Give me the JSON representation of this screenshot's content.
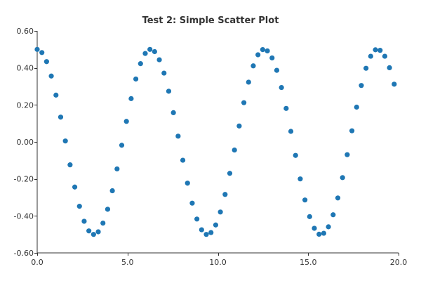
{
  "chart_data": {
    "type": "scatter",
    "title": "Test 2: Simple Scatter Plot",
    "xlabel": "",
    "ylabel": "",
    "xlim": [
      0,
      20
    ],
    "ylim": [
      -0.6,
      0.6
    ],
    "x_ticks": [
      "0.0",
      "5.0",
      "10.0",
      "15.0",
      "20.0"
    ],
    "x_tick_values": [
      0,
      5,
      10,
      15,
      20
    ],
    "y_ticks": [
      "0.60",
      "0.40",
      "0.20",
      "0.00",
      "-0.20",
      "-0.40",
      "-0.60"
    ],
    "y_tick_values": [
      0.6,
      0.4,
      0.2,
      0.0,
      -0.2,
      -0.4,
      -0.6
    ],
    "grid": false,
    "legend": "none",
    "colors": {
      "marker": "#1f77b4"
    },
    "series": [
      {
        "x": [
          0.0,
          0.26,
          0.52,
          0.78,
          1.04,
          1.3,
          1.56,
          1.82,
          2.08,
          2.34,
          2.6,
          2.86,
          3.12,
          3.38,
          3.64,
          3.9,
          4.16,
          4.42,
          4.68,
          4.94,
          5.2,
          5.46,
          5.72,
          5.98,
          6.24,
          6.5,
          6.76,
          7.02,
          7.28,
          7.54,
          7.8,
          8.06,
          8.32,
          8.58,
          8.84,
          9.1,
          9.36,
          9.62,
          9.88,
          10.14,
          10.4,
          10.66,
          10.92,
          11.18,
          11.44,
          11.7,
          11.96,
          12.22,
          12.48,
          12.74,
          13.0,
          13.26,
          13.52,
          13.78,
          14.04,
          14.3,
          14.56,
          14.82,
          15.08,
          15.34,
          15.6,
          15.86,
          16.12,
          16.38,
          16.64,
          16.9,
          17.16,
          17.42,
          17.68,
          17.94,
          18.2,
          18.46,
          18.72,
          18.98,
          19.24,
          19.5,
          19.76
        ],
        "y": [
          0.5,
          0.483,
          0.434,
          0.356,
          0.253,
          0.134,
          0.005,
          -0.124,
          -0.244,
          -0.348,
          -0.429,
          -0.481,
          -0.5,
          -0.486,
          -0.439,
          -0.364,
          -0.264,
          -0.146,
          -0.018,
          0.111,
          0.234,
          0.34,
          0.423,
          0.478,
          0.5,
          0.488,
          0.444,
          0.372,
          0.274,
          0.158,
          0.031,
          -0.099,
          -0.223,
          -0.331,
          -0.417,
          -0.475,
          -0.5,
          -0.49,
          -0.449,
          -0.379,
          -0.284,
          -0.17,
          -0.044,
          0.086,
          0.212,
          0.323,
          0.411,
          0.471,
          0.499,
          0.492,
          0.454,
          0.387,
          0.294,
          0.181,
          0.057,
          -0.073,
          -0.2,
          -0.314,
          -0.404,
          -0.467,
          -0.499,
          -0.494,
          -0.459,
          -0.394,
          -0.303,
          -0.193,
          -0.069,
          0.06,
          0.188,
          0.305,
          0.398,
          0.463,
          0.498,
          0.495,
          0.463,
          0.401,
          0.312
        ]
      }
    ]
  }
}
